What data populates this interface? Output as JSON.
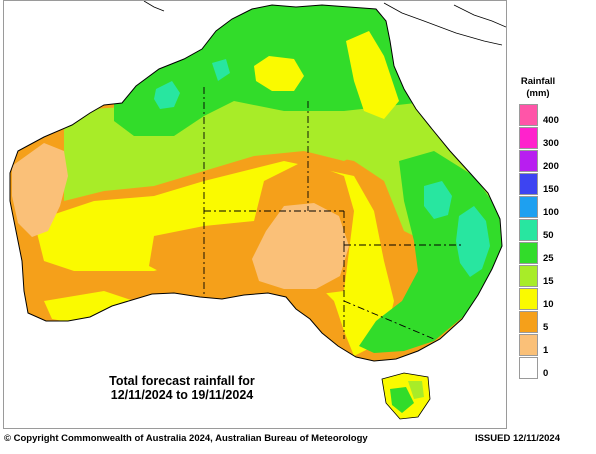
{
  "map": {
    "caption_line1": "Total forecast rainfall for",
    "caption_line2": "12/11/2024 to 19/11/2024"
  },
  "legend": {
    "title_line1": "Rainfall",
    "title_line2": "(mm)",
    "classes": [
      {
        "label": "400",
        "color": "#ff55a8"
      },
      {
        "label": "300",
        "color": "#ff22cc"
      },
      {
        "label": "200",
        "color": "#b81ef0"
      },
      {
        "label": "150",
        "color": "#3d44f2"
      },
      {
        "label": "100",
        "color": "#1ea0f0"
      },
      {
        "label": "50",
        "color": "#28e6a0"
      },
      {
        "label": "25",
        "color": "#32dc2a"
      },
      {
        "label": "15",
        "color": "#a8ec28"
      },
      {
        "label": "10",
        "color": "#fafa00"
      },
      {
        "label": "5",
        "color": "#f5a01a"
      },
      {
        "label": "1",
        "color": "#fac078"
      },
      {
        "label": "0",
        "color": "#ffffff"
      }
    ],
    "boundary_label": ""
  },
  "footer": {
    "copyright": "© Copyright Commonwealth of Australia 2024, Australian Bureau of Meteorology",
    "issued": "ISSUED 12/11/2024"
  }
}
